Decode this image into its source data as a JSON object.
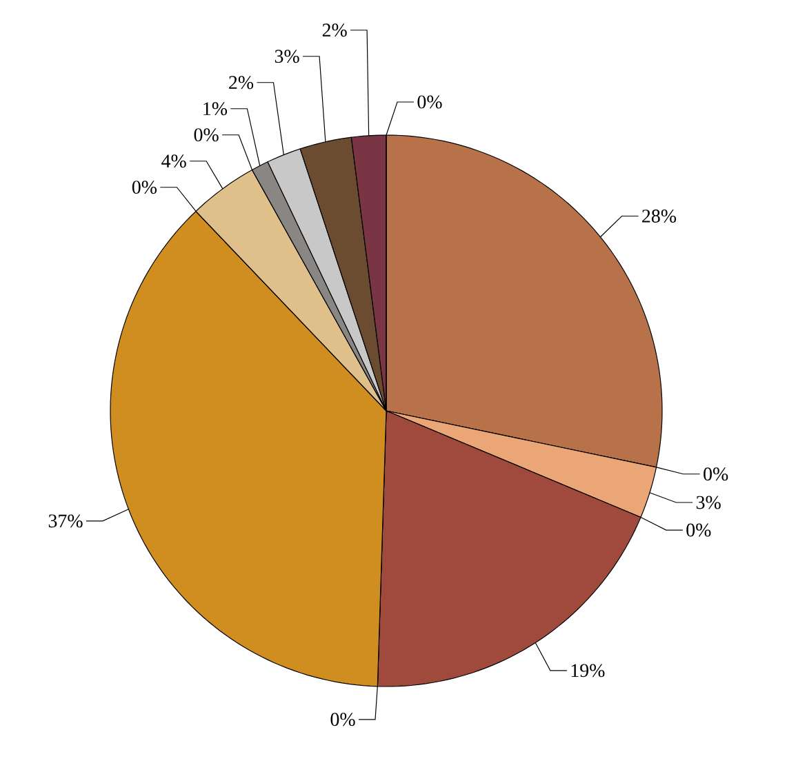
{
  "chart_data": {
    "type": "pie",
    "categories": [
      null,
      null,
      null,
      null,
      null,
      null,
      null,
      null,
      null,
      null,
      null,
      null,
      null,
      null,
      null
    ],
    "values": [
      28,
      0,
      3,
      0,
      19,
      0,
      37,
      0,
      4,
      0,
      1,
      2,
      3,
      2,
      0
    ],
    "colors": [
      "#b87249",
      "#e07a3a",
      "#eba677",
      "#c06a50",
      "#a0493d",
      "#b07020",
      "#d08e21",
      "#c0a060",
      "#dfc08a",
      "#999999",
      "#8a8683",
      "#c8c8c8",
      "#6b4c30",
      "#7a3545",
      "#a03040"
    ],
    "value_labels": [
      "28%",
      "0%",
      "3%",
      "0%",
      "19%",
      "0%",
      "37%",
      "0%",
      "4%",
      "0%",
      "1%",
      "2%",
      "3%",
      "2%",
      "0%"
    ]
  }
}
